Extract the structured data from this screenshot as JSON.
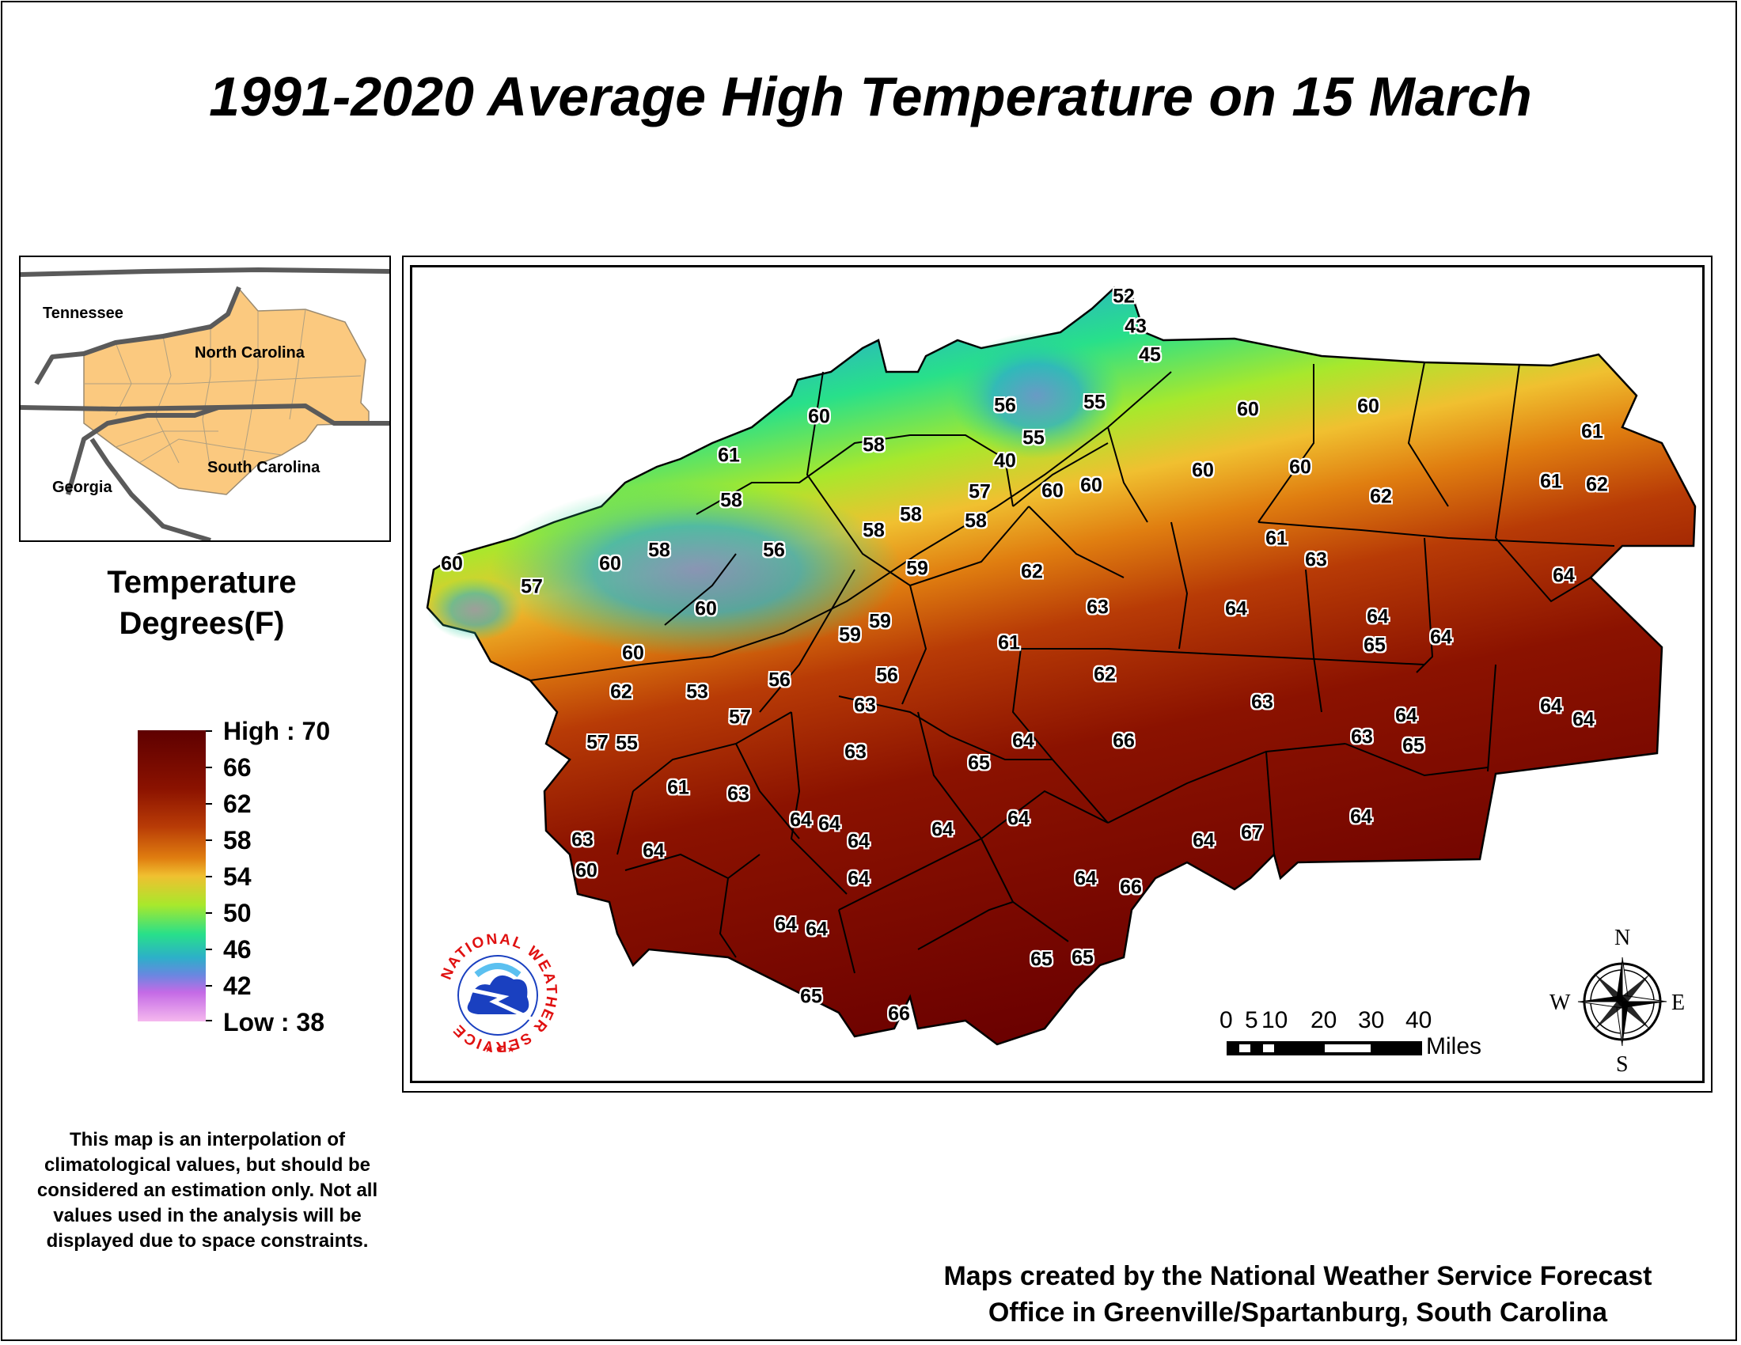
{
  "title": "1991-2020 Average High Temperature on 15 March",
  "inset": {
    "labels": [
      "Tennessee",
      "North Carolina",
      "Georgia",
      "South Carolina"
    ],
    "state_fill": "#fbc97f"
  },
  "legend": {
    "title_line1": "Temperature",
    "title_line2": "Degrees(F)",
    "high": "High : 70",
    "low": "Low : 38",
    "ticks": [
      "66",
      "62",
      "58",
      "54",
      "50",
      "46",
      "42"
    ]
  },
  "map": {
    "values": [
      "52",
      "43",
      "45",
      "55",
      "56",
      "55",
      "40",
      "60",
      "58",
      "61",
      "58",
      "56",
      "58",
      "60",
      "57",
      "60",
      "60",
      "60",
      "62",
      "53",
      "57",
      "55",
      "57",
      "56",
      "59",
      "59",
      "56",
      "58",
      "58",
      "57",
      "58",
      "59",
      "60",
      "60",
      "60",
      "60",
      "60",
      "60",
      "62",
      "61",
      "63",
      "61",
      "62",
      "63",
      "64",
      "64",
      "65",
      "64",
      "61",
      "61",
      "62",
      "64",
      "62",
      "63",
      "64",
      "63",
      "65",
      "64",
      "64",
      "64",
      "63",
      "63",
      "61",
      "63",
      "64",
      "64",
      "64",
      "64",
      "64",
      "65",
      "64",
      "66",
      "64",
      "67",
      "63",
      "60",
      "64",
      "64",
      "64",
      "64",
      "66",
      "64",
      "64",
      "65",
      "65",
      "65",
      "66"
    ]
  },
  "scale_bar": {
    "numbers": [
      "0",
      "5",
      "10",
      "20",
      "30",
      "40"
    ],
    "unit": "Miles"
  },
  "compass": {
    "n": "N",
    "s": "S",
    "e": "E",
    "w": "W"
  },
  "logo": {
    "text": "NATIONAL WEATHER SERVICE"
  },
  "note": "This map is an interpolation of climatological values, but should be considered an estimation only. Not all values used in the analysis will be displayed due to space constraints.",
  "credit_line1": "Maps created by the National Weather Service Forecast",
  "credit_line2": "Office in Greenville/Spartanburg, South Carolina",
  "colors": {
    "high": "#5e0000",
    "mid_warm": "#b83b06",
    "orange": "#e07e10",
    "yellow": "#f0c030",
    "green": "#a8e82c",
    "teal": "#28e08a",
    "blue": "#2cb0c8",
    "purple": "#c46ae6",
    "low": "#f5b8ee"
  }
}
